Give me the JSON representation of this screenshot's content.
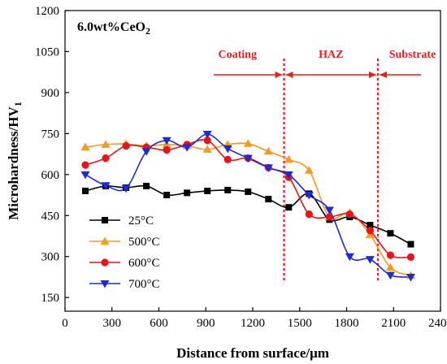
{
  "chart_data": {
    "type": "line",
    "title": "6.0wt%CeO",
    "title_subscript": "2",
    "xlabel": "Distance from surface/μm",
    "ylabel": "Microhardness/HV",
    "ylabel_subscript": "1",
    "xlim": [
      0,
      2400
    ],
    "ylim": [
      100,
      1200
    ],
    "x_ticks": [
      "0",
      "300",
      "600",
      "900",
      "1200",
      "1500",
      "1800",
      "2100",
      "2400"
    ],
    "y_ticks": [
      "150",
      "300",
      "450",
      "600",
      "750",
      "900",
      "1050",
      "1200"
    ],
    "legend_position": "lower-left",
    "regions": {
      "labels": [
        "Coating",
        "HAZ",
        "Substrate"
      ],
      "boundaries": [
        1400,
        2000
      ],
      "color": "#dd2222"
    },
    "series": [
      {
        "name": "25°C",
        "color": "#000000",
        "marker": "square",
        "x": [
          130,
          260,
          390,
          520,
          650,
          780,
          910,
          1040,
          1170,
          1300,
          1430,
          1560,
          1690,
          1820,
          1950,
          2080,
          2210
        ],
        "y": [
          540,
          558,
          552,
          558,
          525,
          533,
          540,
          543,
          537,
          510,
          480,
          530,
          435,
          445,
          415,
          385,
          345
        ]
      },
      {
        "name": "500°C",
        "color": "#f59a23",
        "marker": "triangle-up",
        "x": [
          130,
          260,
          390,
          520,
          650,
          780,
          910,
          1040,
          1170,
          1300,
          1430,
          1560,
          1690,
          1820,
          1950,
          2080,
          2210
        ],
        "y": [
          700,
          710,
          712,
          705,
          710,
          705,
          692,
          710,
          713,
          685,
          655,
          615,
          445,
          460,
          380,
          260,
          230
        ]
      },
      {
        "name": "600°C",
        "color": "#e8141a",
        "marker": "circle",
        "x": [
          130,
          260,
          390,
          520,
          650,
          780,
          910,
          1040,
          1170,
          1300,
          1430,
          1560,
          1690,
          1820,
          1950,
          2080,
          2210
        ],
        "y": [
          635,
          660,
          705,
          700,
          690,
          710,
          725,
          655,
          660,
          625,
          590,
          455,
          445,
          455,
          395,
          305,
          298
        ]
      },
      {
        "name": "700°C",
        "color": "#1d2bd6",
        "marker": "triangle-down",
        "x": [
          130,
          260,
          390,
          520,
          650,
          780,
          910,
          1040,
          1170,
          1300,
          1430,
          1560,
          1690,
          1820,
          1950,
          2080,
          2210
        ],
        "y": [
          600,
          560,
          550,
          685,
          725,
          700,
          748,
          695,
          660,
          625,
          600,
          525,
          470,
          300,
          290,
          232,
          225
        ]
      }
    ]
  }
}
